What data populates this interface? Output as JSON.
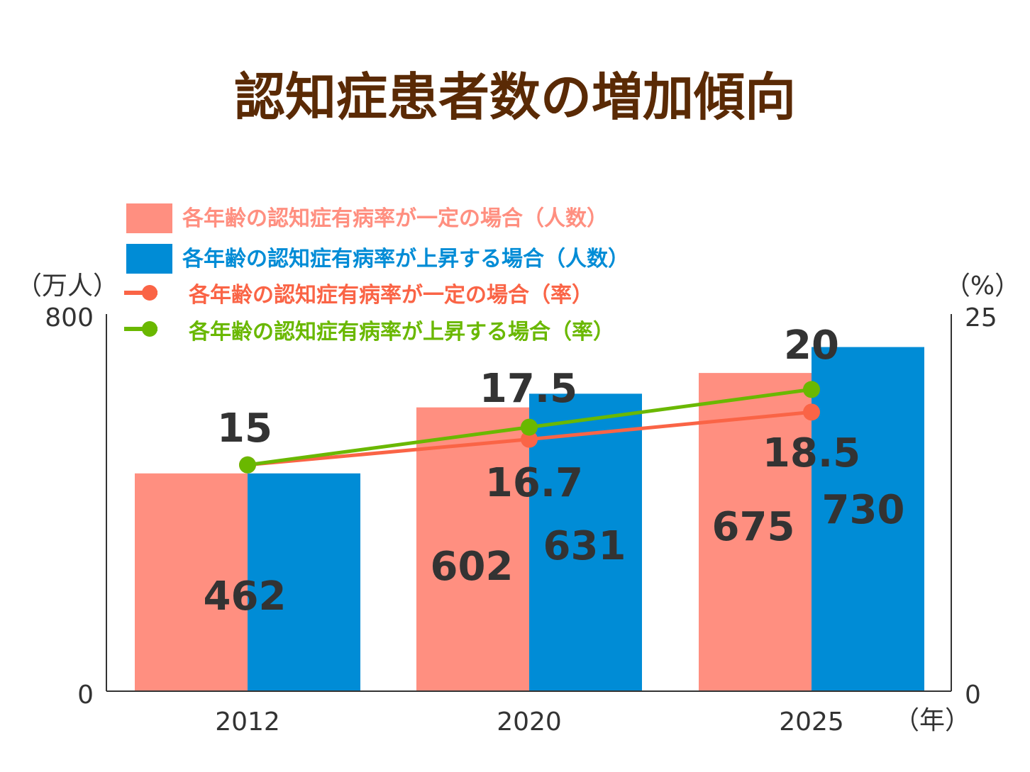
{
  "chart_data": {
    "type": "bar+line",
    "title": "認知症患者数の増加傾向",
    "categories": [
      "2012",
      "2020",
      "2025"
    ],
    "xunit": "（年）",
    "ylabel_left": "（万人）",
    "ylabel_right": "（%）",
    "ylim_left": [
      0,
      800
    ],
    "ylim_right": [
      0,
      25
    ],
    "yticks_left": [
      "0",
      "800"
    ],
    "yticks_right": [
      "0",
      "25"
    ],
    "grid": false,
    "legend_position": "top-left",
    "series": [
      {
        "name": "各年齢の認知症有病率が一定の場合（人数）",
        "type": "bar",
        "axis": "left",
        "color": "#ff8f80",
        "values": [
          462,
          602,
          675
        ],
        "labels": [
          "462",
          "602",
          "675"
        ]
      },
      {
        "name": "各年齢の認知症有病率が上昇する場合（人数）",
        "type": "bar",
        "axis": "left",
        "color": "#008cd6",
        "values": [
          462,
          631,
          730
        ],
        "labels": [
          "",
          "631",
          "730"
        ]
      },
      {
        "name": "各年齢の認知症有病率が一定の場合（率）",
        "type": "line",
        "axis": "right",
        "color": "#fa6446",
        "values": [
          15,
          16.7,
          18.5
        ],
        "labels": [
          "15",
          "16.7",
          "18.5"
        ]
      },
      {
        "name": "各年齢の認知症有病率が上昇する場合（率）",
        "type": "line",
        "axis": "right",
        "color": "#6ab800",
        "values": [
          15,
          17.5,
          20
        ],
        "labels": [
          "",
          "17.5",
          "20"
        ]
      }
    ]
  }
}
